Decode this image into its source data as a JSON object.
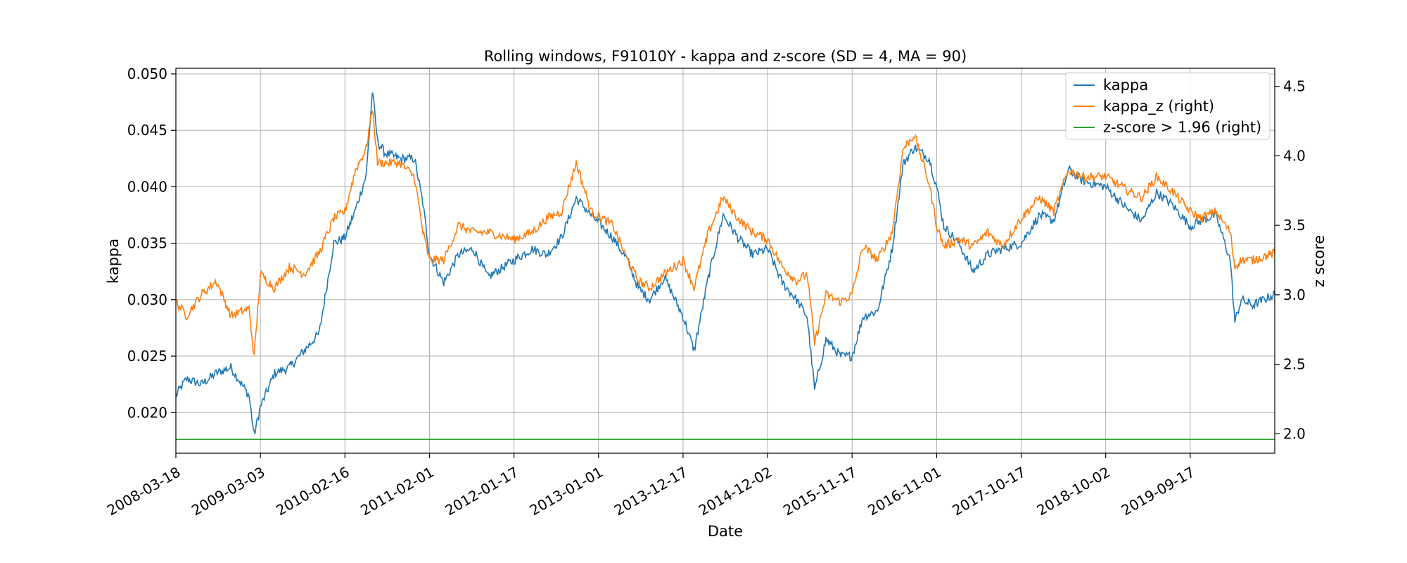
{
  "chart_data": {
    "type": "line",
    "title": "Rolling windows, F91010Y - kappa and z-score (SD = 4, MA = 90)",
    "xlabel": "Date",
    "ylabel": "kappa",
    "ylabel_right": "z score",
    "xlim": [
      "2008-03-18",
      "2020-09-01"
    ],
    "ylim": [
      0.0164,
      0.0505
    ],
    "ylim_right": [
      1.86,
      4.63
    ],
    "x_ticks": [
      "2008-03-18",
      "2009-03-03",
      "2010-02-16",
      "2011-02-01",
      "2012-01-17",
      "2013-01-01",
      "2013-12-17",
      "2014-12-02",
      "2015-11-17",
      "2016-11-01",
      "2017-10-17",
      "2018-10-02",
      "2019-09-17"
    ],
    "y_ticks": [
      "0.020",
      "0.025",
      "0.030",
      "0.035",
      "0.040",
      "0.045",
      "0.050"
    ],
    "y_ticks_right": [
      "2.0",
      "2.5",
      "3.0",
      "3.5",
      "4.0",
      "4.5"
    ],
    "grid": true,
    "legend_position": "top-right",
    "series": [
      {
        "name": "kappa",
        "axis": "left",
        "color": "#1f77b4",
        "x": [
          "2008-03-18",
          "2008-05-01",
          "2008-07-01",
          "2008-09-01",
          "2008-11-01",
          "2009-01-15",
          "2009-02-05",
          "2009-03-03",
          "2009-05-01",
          "2009-07-01",
          "2009-09-01",
          "2009-11-01",
          "2010-01-01",
          "2010-02-16",
          "2010-04-01",
          "2010-05-15",
          "2010-06-10",
          "2010-07-01",
          "2010-08-01",
          "2010-10-01",
          "2010-12-01",
          "2011-01-05",
          "2011-02-01",
          "2011-04-01",
          "2011-06-01",
          "2011-08-01",
          "2011-10-01",
          "2012-01-17",
          "2012-04-01",
          "2012-06-01",
          "2012-08-01",
          "2012-10-01",
          "2012-12-01",
          "2013-03-01",
          "2013-05-01",
          "2013-06-15",
          "2013-08-01",
          "2013-10-01",
          "2013-12-17",
          "2014-02-01",
          "2014-04-01",
          "2014-06-01",
          "2014-08-01",
          "2014-10-01",
          "2014-12-02",
          "2015-02-01",
          "2015-04-01",
          "2015-05-15",
          "2015-06-15",
          "2015-08-01",
          "2015-10-01",
          "2015-11-17",
          "2016-01-01",
          "2016-03-01",
          "2016-05-01",
          "2016-06-15",
          "2016-08-01",
          "2016-10-01",
          "2016-11-01",
          "2016-12-01",
          "2017-02-01",
          "2017-04-01",
          "2017-06-01",
          "2017-08-01",
          "2017-10-17",
          "2018-01-01",
          "2018-03-01",
          "2018-05-01",
          "2018-07-01",
          "2018-10-02",
          "2019-01-01",
          "2019-03-01",
          "2019-05-01",
          "2019-07-01",
          "2019-09-17",
          "2019-11-01",
          "2020-01-01",
          "2020-03-01",
          "2020-03-20",
          "2020-04-15",
          "2020-06-01",
          "2020-09-01"
        ],
        "values": [
          0.0215,
          0.023,
          0.0225,
          0.0235,
          0.024,
          0.0215,
          0.018,
          0.0205,
          0.0235,
          0.024,
          0.0255,
          0.027,
          0.035,
          0.0355,
          0.038,
          0.041,
          0.0485,
          0.044,
          0.043,
          0.0425,
          0.0425,
          0.0385,
          0.034,
          0.0315,
          0.034,
          0.0345,
          0.032,
          0.0335,
          0.0345,
          0.034,
          0.0355,
          0.039,
          0.0375,
          0.0355,
          0.0335,
          0.031,
          0.03,
          0.032,
          0.0285,
          0.0255,
          0.032,
          0.0375,
          0.0355,
          0.034,
          0.0345,
          0.0315,
          0.03,
          0.0285,
          0.022,
          0.0265,
          0.025,
          0.025,
          0.0285,
          0.029,
          0.0345,
          0.042,
          0.0435,
          0.0425,
          0.04,
          0.0365,
          0.035,
          0.0325,
          0.034,
          0.0345,
          0.035,
          0.0375,
          0.037,
          0.0415,
          0.0405,
          0.04,
          0.038,
          0.037,
          0.0395,
          0.0385,
          0.0365,
          0.037,
          0.0375,
          0.0335,
          0.028,
          0.03,
          0.0295,
          0.0305
        ]
      },
      {
        "name": "kappa_z (right)",
        "axis": "right",
        "color": "#ff7f0e",
        "x": [
          "2008-03-18",
          "2008-05-01",
          "2008-07-01",
          "2008-09-01",
          "2008-11-01",
          "2009-01-15",
          "2009-02-05",
          "2009-03-03",
          "2009-05-01",
          "2009-07-01",
          "2009-09-01",
          "2009-11-01",
          "2010-01-01",
          "2010-02-16",
          "2010-04-01",
          "2010-05-15",
          "2010-06-10",
          "2010-07-01",
          "2010-08-01",
          "2010-10-01",
          "2010-12-01",
          "2011-01-05",
          "2011-02-01",
          "2011-04-01",
          "2011-06-01",
          "2011-08-01",
          "2011-10-01",
          "2012-01-17",
          "2012-04-01",
          "2012-06-01",
          "2012-08-01",
          "2012-10-01",
          "2012-12-01",
          "2013-03-01",
          "2013-05-01",
          "2013-06-15",
          "2013-08-01",
          "2013-10-01",
          "2013-12-17",
          "2014-02-01",
          "2014-04-01",
          "2014-06-01",
          "2014-08-01",
          "2014-10-01",
          "2014-12-02",
          "2015-02-01",
          "2015-04-01",
          "2015-05-15",
          "2015-06-15",
          "2015-08-01",
          "2015-10-01",
          "2015-11-17",
          "2016-01-01",
          "2016-03-01",
          "2016-05-01",
          "2016-06-15",
          "2016-08-01",
          "2016-10-01",
          "2016-11-01",
          "2016-12-01",
          "2017-02-01",
          "2017-04-01",
          "2017-06-01",
          "2017-08-01",
          "2017-10-17",
          "2018-01-01",
          "2018-03-01",
          "2018-05-01",
          "2018-07-01",
          "2018-10-02",
          "2019-01-01",
          "2019-03-01",
          "2019-05-01",
          "2019-07-01",
          "2019-09-17",
          "2019-11-01",
          "2020-01-01",
          "2020-03-01",
          "2020-03-20",
          "2020-04-15",
          "2020-06-01",
          "2020-09-01"
        ],
        "values": [
          2.95,
          2.85,
          3.0,
          3.1,
          2.85,
          2.9,
          2.55,
          3.15,
          3.05,
          3.2,
          3.15,
          3.3,
          3.55,
          3.6,
          3.9,
          4.05,
          4.35,
          3.95,
          3.95,
          3.95,
          3.85,
          3.45,
          3.25,
          3.25,
          3.5,
          3.45,
          3.45,
          3.4,
          3.45,
          3.55,
          3.6,
          3.95,
          3.6,
          3.5,
          3.25,
          3.1,
          3.05,
          3.15,
          3.25,
          3.05,
          3.45,
          3.7,
          3.55,
          3.45,
          3.4,
          3.2,
          3.1,
          3.15,
          2.65,
          3.0,
          2.95,
          3.0,
          3.35,
          3.25,
          3.45,
          4.05,
          4.15,
          3.8,
          3.5,
          3.35,
          3.4,
          3.35,
          3.45,
          3.35,
          3.55,
          3.7,
          3.6,
          3.9,
          3.85,
          3.85,
          3.75,
          3.7,
          3.85,
          3.75,
          3.6,
          3.55,
          3.6,
          3.45,
          3.2,
          3.25,
          3.25,
          3.3
        ]
      },
      {
        "name": "z-score > 1.96 (right)",
        "axis": "right",
        "color": "#2ca02c",
        "x": [
          "2008-03-18",
          "2020-09-01"
        ],
        "values": [
          1.96,
          1.96
        ]
      }
    ]
  }
}
